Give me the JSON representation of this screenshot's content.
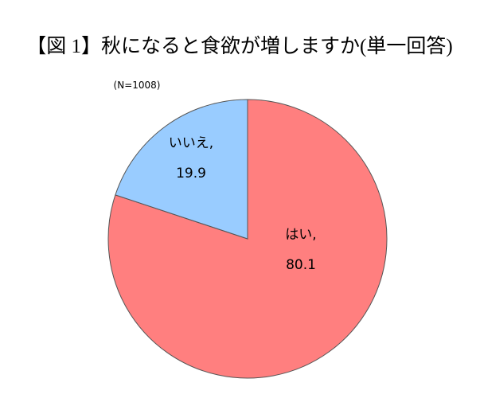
{
  "chart_data": {
    "type": "pie",
    "title": "【図 1】秋になると食欲が増しますか(単一回答)",
    "subtitle": "(N=1008)",
    "categories": [
      "はい,",
      "いいえ,"
    ],
    "values": [
      80.1,
      19.9
    ],
    "colors": [
      "#ff7f7f",
      "#99ccff"
    ]
  }
}
